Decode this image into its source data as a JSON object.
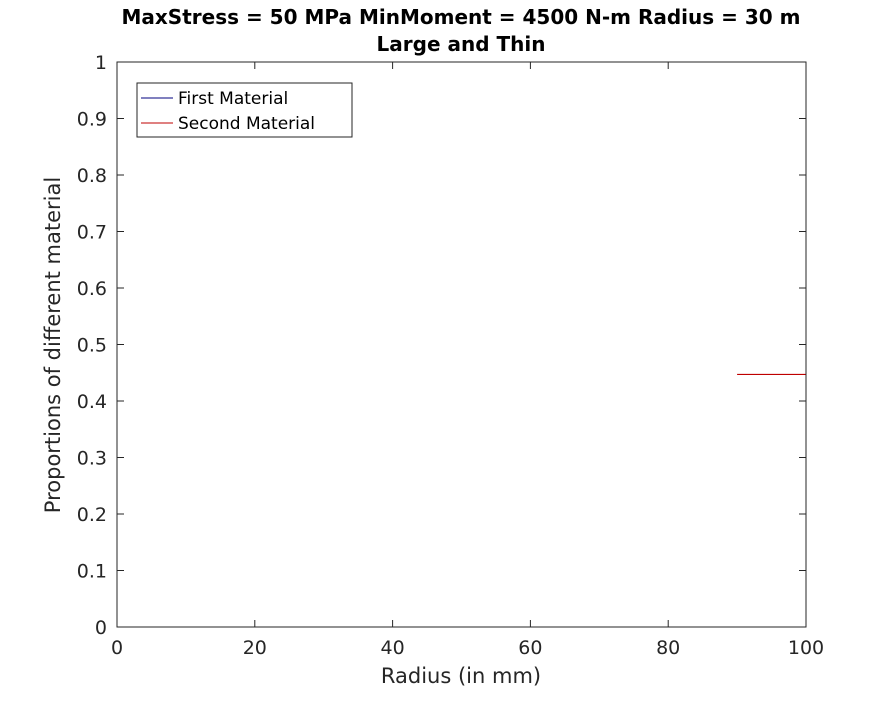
{
  "chart_data": {
    "type": "line",
    "title": "MaxStress = 50 MPa MinMoment = 4500 N-m Radius = 30 m",
    "subtitle": "Large and Thin",
    "xlabel": "Radius (in mm)",
    "ylabel": "Proportions of different material",
    "xlim": [
      0,
      100
    ],
    "ylim": [
      0,
      1
    ],
    "x_ticks": [
      0,
      20,
      40,
      60,
      80,
      100
    ],
    "y_ticks": [
      0,
      0.1,
      0.2,
      0.3,
      0.4,
      0.5,
      0.6,
      0.7,
      0.8,
      0.9,
      1
    ],
    "x_tick_labels": [
      "0",
      "20",
      "40",
      "60",
      "80",
      "100"
    ],
    "y_tick_labels": [
      "0",
      "0.1",
      "0.2",
      "0.3",
      "0.4",
      "0.5",
      "0.6",
      "0.7",
      "0.8",
      "0.9",
      "1"
    ],
    "grid": false,
    "legend_position": "top-left",
    "series": [
      {
        "name": "First Material",
        "color": "#00007f",
        "x": [],
        "y": []
      },
      {
        "name": "Second Material",
        "color": "#bf0000",
        "x": [
          90,
          100
        ],
        "y": [
          0.447,
          0.447
        ]
      }
    ]
  }
}
